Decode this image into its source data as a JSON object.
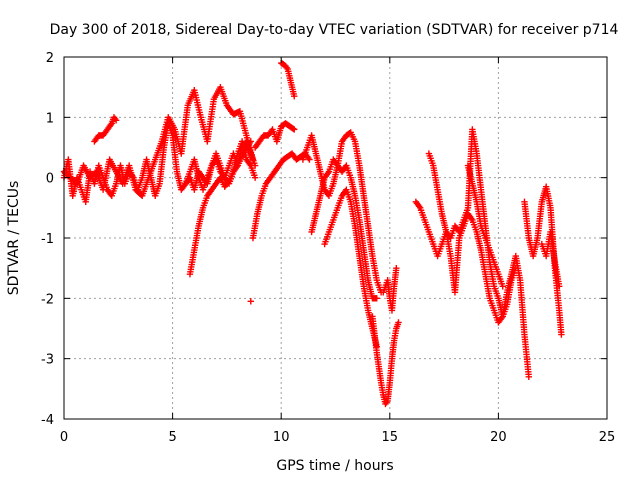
{
  "chart_data": {
    "type": "scatter",
    "title": "Day 300 of 2018, Sidereal Day-to-day VTEC variation (SDTVAR) for receiver p714",
    "xlabel": "GPS time / hours",
    "ylabel": "SDTVAR / TECUs",
    "xlim": [
      0,
      25
    ],
    "ylim": [
      -4,
      2
    ],
    "xticks": [
      0,
      5,
      10,
      15,
      20,
      25
    ],
    "yticks": [
      -4,
      -3,
      -2,
      -1,
      0,
      1,
      2
    ],
    "grid": true,
    "marker": "plus",
    "color": "#ff0000",
    "segments": [
      {
        "x": [
          0.0,
          0.2,
          0.4,
          0.6,
          0.8,
          1.0,
          1.2,
          1.4,
          1.6,
          1.8,
          2.0,
          2.2,
          2.4,
          2.6,
          2.8,
          3.0,
          3.2,
          3.4,
          3.6,
          3.8,
          4.0,
          4.2,
          4.4,
          4.6,
          4.8,
          5.0,
          5.2,
          5.4,
          5.6,
          5.8,
          6.0,
          6.2,
          6.4,
          6.6,
          6.8,
          7.0,
          7.2,
          7.4,
          7.6,
          7.8,
          8.0,
          8.2,
          8.4,
          8.6,
          8.8
        ],
        "y": [
          0.0,
          0.3,
          -0.3,
          0.0,
          -0.2,
          -0.4,
          0.1,
          -0.1,
          0.2,
          0.0,
          -0.2,
          -0.3,
          -0.1,
          0.2,
          -0.1,
          0.1,
          0.0,
          -0.2,
          0.0,
          0.3,
          0.0,
          -0.3,
          -0.1,
          0.5,
          0.9,
          0.7,
          0.1,
          -0.2,
          -0.1,
          0.1,
          0.3,
          0.0,
          -0.2,
          0.0,
          0.2,
          0.4,
          0.2,
          0.0,
          -0.1,
          0.1,
          0.4,
          0.6,
          0.3,
          0.2,
          0.0
        ]
      },
      {
        "x": [
          0.0,
          0.3,
          0.6,
          0.9,
          1.2,
          1.5,
          1.8,
          2.1,
          2.4,
          2.7,
          3.0,
          3.3,
          3.6,
          3.9,
          4.2,
          4.5,
          4.8,
          5.1,
          5.4,
          5.7,
          6.0,
          6.3,
          6.6,
          6.9,
          7.2,
          7.5,
          7.8,
          8.1,
          8.4,
          8.7
        ],
        "y": [
          0.1,
          0.0,
          -0.1,
          0.2,
          0.0,
          0.1,
          -0.2,
          0.3,
          0.1,
          -0.1,
          0.2,
          -0.2,
          -0.3,
          0.0,
          0.3,
          0.6,
          1.0,
          0.8,
          0.4,
          1.2,
          1.45,
          1.0,
          0.6,
          1.3,
          1.5,
          1.2,
          1.05,
          1.1,
          0.7,
          0.3
        ]
      },
      {
        "x": [
          1.4,
          1.6,
          1.8,
          2.0,
          2.2,
          2.3,
          2.4
        ],
        "y": [
          0.6,
          0.7,
          0.7,
          0.8,
          0.9,
          1.0,
          0.95
        ]
      },
      {
        "x": [
          5.8,
          6.0,
          6.2,
          6.4,
          6.6,
          6.8,
          7.0,
          7.2,
          7.4,
          7.6,
          7.8,
          8.0,
          8.2,
          8.4,
          8.6
        ],
        "y": [
          -1.6,
          -1.2,
          -0.8,
          -0.5,
          -0.3,
          -0.2,
          -0.1,
          0.0,
          -0.15,
          -0.05,
          0.1,
          0.2,
          0.35,
          0.5,
          0.6
        ]
      },
      {
        "x": [
          5.6,
          5.8,
          6.0,
          6.2,
          6.4,
          6.6,
          6.8,
          7.0,
          7.2,
          7.4,
          7.6,
          7.8,
          8.0,
          8.2,
          8.4,
          8.6,
          8.8
        ],
        "y": [
          -0.1,
          0.0,
          -0.2,
          0.1,
          0.0,
          -0.1,
          0.2,
          0.3,
          0.1,
          0.0,
          0.2,
          0.4,
          0.2,
          0.5,
          0.6,
          0.4,
          0.2
        ]
      },
      {
        "x": [
          8.6
        ],
        "y": [
          -2.05
        ]
      },
      {
        "x": [
          8.7,
          8.9,
          9.1,
          9.3,
          9.5,
          9.7,
          9.9,
          10.1,
          10.3,
          10.5,
          10.7,
          10.9,
          11.1,
          11.3
        ],
        "y": [
          -1.0,
          -0.6,
          -0.3,
          -0.1,
          0.0,
          0.1,
          0.2,
          0.3,
          0.35,
          0.4,
          0.3,
          0.35,
          0.4,
          0.3
        ]
      },
      {
        "x": [
          8.8,
          9.0,
          9.2,
          9.4,
          9.6,
          9.8,
          10.0,
          10.2,
          10.4,
          10.6
        ],
        "y": [
          0.5,
          0.6,
          0.7,
          0.7,
          0.8,
          0.6,
          0.85,
          0.9,
          0.85,
          0.8
        ]
      },
      {
        "x": [
          10.0,
          10.1,
          10.2,
          10.3,
          10.4,
          10.5,
          10.6
        ],
        "y": [
          1.9,
          1.88,
          1.85,
          1.8,
          1.65,
          1.5,
          1.35
        ]
      },
      {
        "x": [
          11.0,
          11.2,
          11.4,
          11.6,
          11.8,
          12.0,
          12.2,
          12.4,
          12.6,
          12.8,
          13.0,
          13.2,
          13.4,
          13.6,
          13.8,
          14.0,
          14.2,
          14.4,
          14.6
        ],
        "y": [
          0.3,
          0.5,
          0.7,
          0.4,
          0.1,
          -0.2,
          -0.3,
          -0.1,
          0.2,
          0.6,
          0.7,
          0.75,
          0.6,
          0.2,
          -0.3,
          -0.8,
          -1.3,
          -1.7,
          -1.9
        ]
      },
      {
        "x": [
          11.4,
          11.6,
          11.8,
          12.0,
          12.2,
          12.4,
          12.6,
          12.8,
          13.0,
          13.2,
          13.4,
          13.6,
          13.8,
          14.0,
          14.2,
          14.4
        ],
        "y": [
          -0.9,
          -0.6,
          -0.3,
          0.0,
          0.1,
          0.3,
          0.2,
          0.1,
          0.2,
          0.0,
          -0.3,
          -0.7,
          -1.2,
          -1.7,
          -2.0,
          -2.0
        ]
      },
      {
        "x": [
          12.0,
          12.2,
          12.4,
          12.6,
          12.8,
          13.0,
          13.2,
          13.4,
          13.6,
          13.8,
          14.0,
          14.2,
          14.4
        ],
        "y": [
          -1.1,
          -0.9,
          -0.7,
          -0.5,
          -0.3,
          -0.2,
          -0.4,
          -0.8,
          -1.3,
          -1.8,
          -2.2,
          -2.5,
          -2.8
        ]
      },
      {
        "x": [
          14.2,
          14.4,
          14.6,
          14.7,
          14.8,
          14.9,
          15.0,
          15.1,
          15.2,
          15.3,
          15.4
        ],
        "y": [
          -2.3,
          -2.9,
          -3.4,
          -3.6,
          -3.75,
          -3.7,
          -3.4,
          -3.0,
          -2.7,
          -2.5,
          -2.4
        ]
      },
      {
        "x": [
          14.7,
          14.9,
          15.0,
          15.1,
          15.2,
          15.3
        ],
        "y": [
          -1.9,
          -1.7,
          -2.0,
          -2.2,
          -1.8,
          -1.5
        ]
      },
      {
        "x": [
          16.2,
          16.4,
          16.6,
          16.8,
          17.0,
          17.2,
          17.4,
          17.6,
          17.8,
          18.0,
          18.2,
          18.4,
          18.6,
          18.8,
          19.0,
          19.2,
          19.4,
          19.6,
          19.8,
          20.0,
          20.2,
          20.4,
          20.6,
          20.8,
          21.0,
          21.2,
          21.4
        ],
        "y": [
          -0.4,
          -0.5,
          -0.7,
          -0.9,
          -1.1,
          -1.3,
          -1.1,
          -0.9,
          -1.3,
          -1.9,
          -1.0,
          -0.8,
          -0.6,
          -0.7,
          -0.9,
          -1.2,
          -1.6,
          -2.0,
          -2.2,
          -2.4,
          -2.3,
          -1.9,
          -1.6,
          -1.3,
          -1.7,
          -2.6,
          -3.3
        ]
      },
      {
        "x": [
          16.8,
          17.0,
          17.2,
          17.4,
          17.6,
          17.8,
          18.0,
          18.2,
          18.4,
          18.6,
          18.8,
          19.0,
          19.2,
          19.4,
          19.6,
          19.8,
          20.0,
          20.2,
          20.4,
          20.6,
          20.8
        ],
        "y": [
          0.4,
          0.2,
          -0.2,
          -0.6,
          -0.9,
          -1.0,
          -0.8,
          -0.9,
          -0.7,
          -0.5,
          0.8,
          0.4,
          -0.2,
          -0.8,
          -1.4,
          -1.8,
          -2.0,
          -2.3,
          -2.1,
          -1.7,
          -1.5
        ]
      },
      {
        "x": [
          18.6,
          18.8,
          19.0,
          19.2,
          19.4,
          19.6,
          19.8,
          20.0,
          20.2
        ],
        "y": [
          0.2,
          -0.1,
          -0.4,
          -0.8,
          -1.0,
          -1.2,
          -1.4,
          -1.6,
          -1.8
        ]
      },
      {
        "x": [
          21.2,
          21.4,
          21.6,
          21.8,
          22.0,
          22.2,
          22.4,
          22.6,
          22.8,
          22.9
        ],
        "y": [
          -0.4,
          -1.0,
          -1.3,
          -1.0,
          -0.4,
          -0.15,
          -0.5,
          -1.5,
          -2.2,
          -2.6
        ]
      },
      {
        "x": [
          22.0,
          22.2,
          22.4,
          22.6,
          22.8
        ],
        "y": [
          -1.1,
          -1.3,
          -0.9,
          -1.4,
          -1.8
        ]
      }
    ]
  }
}
